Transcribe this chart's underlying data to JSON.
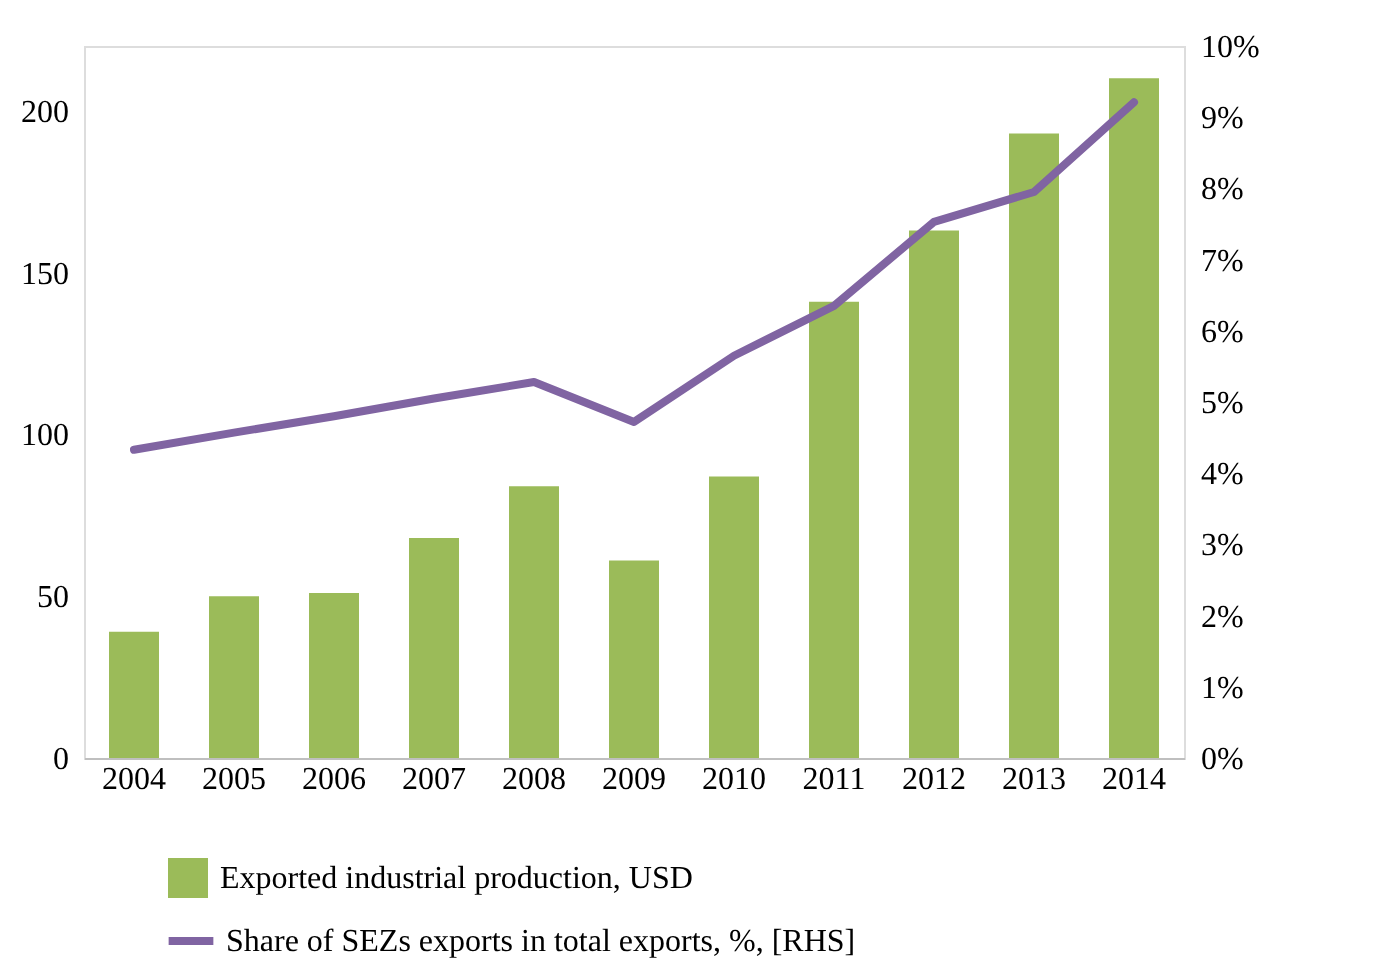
{
  "chart_data": {
    "type": "bar",
    "categories": [
      "2004",
      "2005",
      "2006",
      "2007",
      "2008",
      "2009",
      "2010",
      "2011",
      "2012",
      "2013",
      "2014"
    ],
    "series": [
      {
        "name": "Exported industrial production, USD",
        "color": "#9bbb59",
        "values": [
          39,
          50,
          51,
          68,
          84,
          61,
          87,
          141,
          163,
          193,
          210
        ]
      },
      {
        "name": "Share of SEZs exports in total exports, %, [RHS]",
        "type": "line",
        "axis": "y2",
        "color": "#8064a2",
        "values": [
          4.33,
          4.57,
          4.8,
          5.05,
          5.28,
          4.72,
          5.65,
          6.35,
          7.53,
          7.95,
          9.21
        ]
      }
    ],
    "ylim": [
      0,
      220
    ],
    "yticks": [
      0,
      50,
      100,
      150,
      200
    ],
    "y2lim": [
      0,
      10
    ],
    "y2ticks": [
      {
        "value": 0,
        "label": "0%"
      },
      {
        "value": 1,
        "label": "1%"
      },
      {
        "value": 2,
        "label": "2%"
      },
      {
        "value": 3,
        "label": "3%"
      },
      {
        "value": 4,
        "label": "4%"
      },
      {
        "value": 5,
        "label": "5%"
      },
      {
        "value": 6,
        "label": "6%"
      },
      {
        "value": 7,
        "label": "7%"
      },
      {
        "value": 8,
        "label": "8%"
      },
      {
        "value": 9,
        "label": "9%"
      },
      {
        "value": 10,
        "label": "10%"
      }
    ],
    "grid": false,
    "legend": "bottom"
  }
}
